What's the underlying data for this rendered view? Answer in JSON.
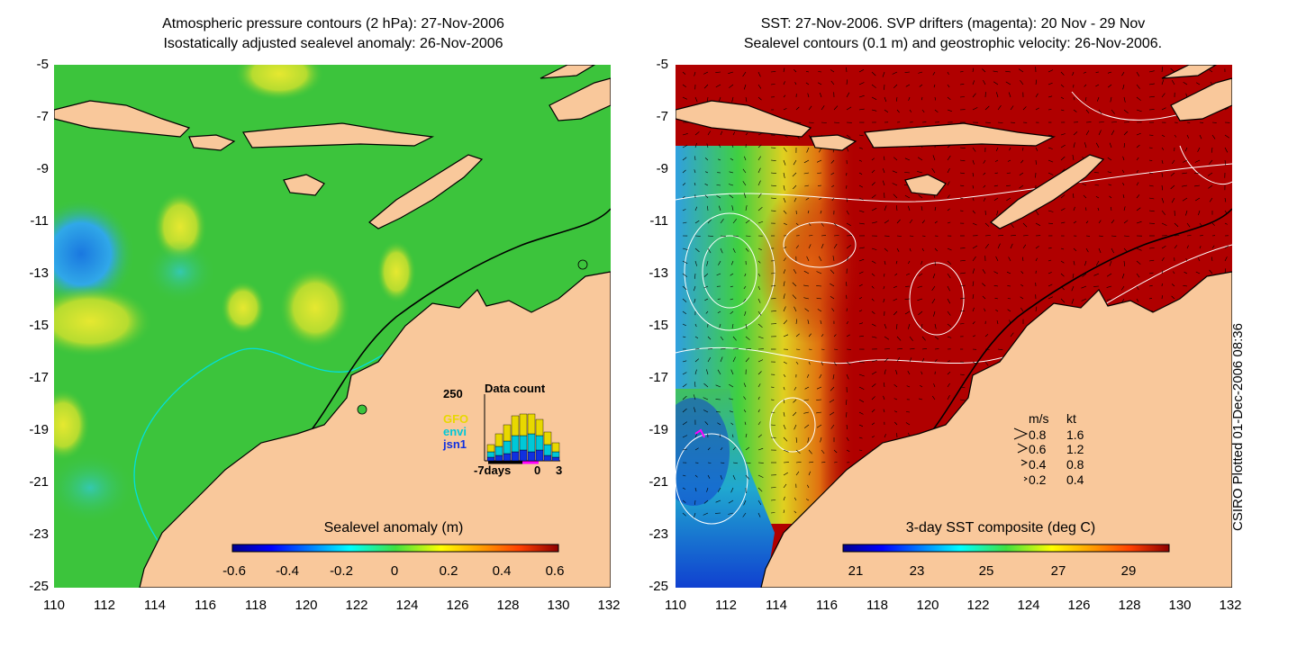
{
  "left_panel": {
    "title_line1": "Atmospheric pressure contours (2 hPa): 27-Nov-2006",
    "title_line2": "Isostatically adjusted sealevel anomaly: 26-Nov-2006",
    "colorbar_title": "Sealevel anomaly (m)",
    "colorbar_ticks": [
      "-0.6",
      "-0.4",
      "-0.2",
      "0",
      "0.2",
      "0.4",
      "0.6"
    ],
    "inset": {
      "title": "Data count",
      "ymax_label": "250",
      "xticks": [
        "-7days",
        "0",
        "3"
      ],
      "legend": [
        {
          "name": "GFO",
          "color": "#e8d800"
        },
        {
          "name": "envi",
          "color": "#00c8d8"
        },
        {
          "name": "jsn1",
          "color": "#1030e0"
        }
      ]
    }
  },
  "right_panel": {
    "title_line1": "SST: 27-Nov-2006. SVP drifters (magenta): 20 Nov - 29 Nov",
    "title_line2": "Sealevel contours (0.1 m) and geostrophic velocity: 26-Nov-2006.",
    "colorbar_title": "3-day SST composite (deg C)",
    "colorbar_ticks": [
      "21",
      "23",
      "25",
      "27",
      "29"
    ],
    "velocity_legend": {
      "header_ms": "m/s",
      "header_kt": "kt",
      "rows": [
        {
          "ms": "0.8",
          "kt": "1.6"
        },
        {
          "ms": "0.6",
          "kt": "1.2"
        },
        {
          "ms": "0.4",
          "kt": "0.8"
        },
        {
          "ms": "0.2",
          "kt": "0.4"
        }
      ]
    }
  },
  "axes": {
    "yticks": [
      "-5",
      "-7",
      "-9",
      "-11",
      "-13",
      "-15",
      "-17",
      "-19",
      "-21",
      "-23",
      "-25"
    ],
    "xticks": [
      "110",
      "112",
      "114",
      "116",
      "118",
      "120",
      "122",
      "124",
      "126",
      "128",
      "130",
      "132"
    ]
  },
  "credit": "CSIRO Plotted 01-Dec-2006 08:36",
  "colors": {
    "land": "#f9c89b",
    "ocean_sla": "#3cc43c",
    "ocean_sst": "#b00000",
    "drifter": "#ff00ff",
    "contour_cyan": "#00e0e0"
  }
}
